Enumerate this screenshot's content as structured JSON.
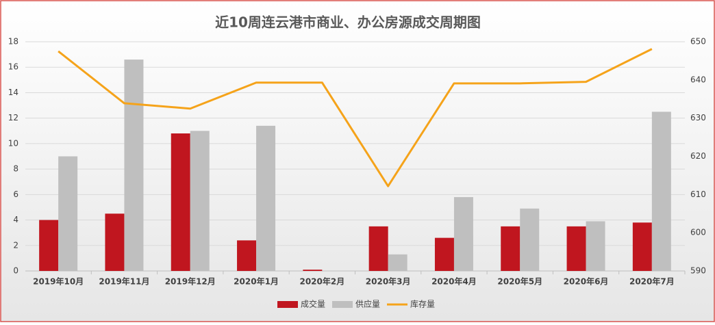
{
  "chart_data": {
    "type": "bar_line",
    "title": "近10周连云港市商业、办公房源成交周期图",
    "categories": [
      "2019年10月",
      "2019年11月",
      "2019年12月",
      "2020年1月",
      "2020年2月",
      "2020年3月",
      "2020年4月",
      "2020年5月",
      "2020年6月",
      "2020年7月"
    ],
    "series": [
      {
        "name": "成交量",
        "type": "bar",
        "color": "#c0161f",
        "values": [
          4.0,
          4.5,
          10.8,
          2.4,
          0.1,
          3.5,
          2.6,
          3.5,
          3.5,
          3.8
        ]
      },
      {
        "name": "供应量",
        "type": "bar",
        "color": "#bfbfbf",
        "values": [
          9.0,
          16.6,
          11.0,
          11.4,
          0,
          1.3,
          5.8,
          4.9,
          3.9,
          12.5
        ]
      },
      {
        "name": "库存量",
        "type": "line",
        "axis": "y2",
        "color": "#f5a31a",
        "values": [
          647.5,
          633.9,
          632.5,
          639.3,
          639.3,
          612.2,
          639.1,
          639.1,
          639.5,
          648.1
        ]
      }
    ],
    "ylim": [
      0,
      18
    ],
    "yticks": [
      0,
      2,
      4,
      6,
      8,
      10,
      12,
      14,
      16,
      18
    ],
    "y2lim": [
      590,
      650
    ],
    "y2ticks": [
      590,
      600,
      610,
      620,
      630,
      640,
      650
    ],
    "grid": true,
    "legend": "bottom"
  }
}
